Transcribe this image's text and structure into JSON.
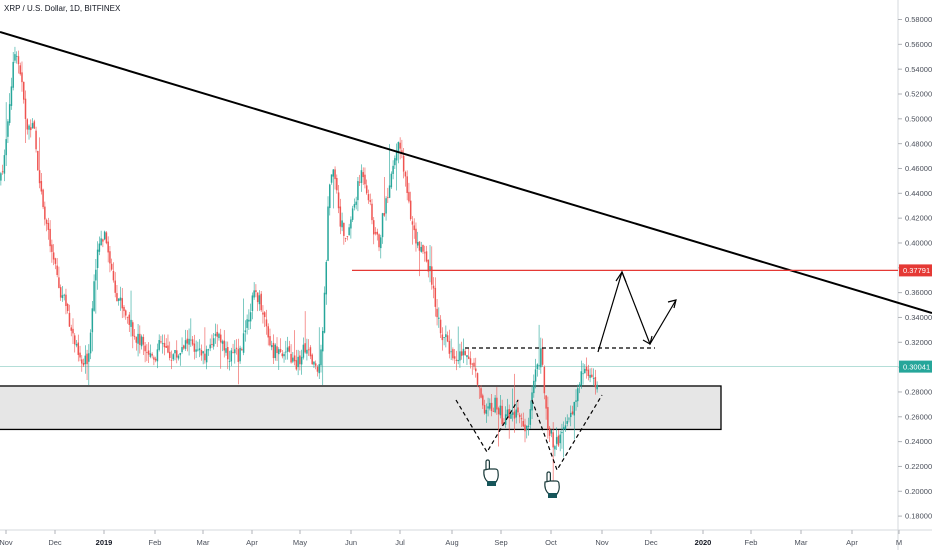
{
  "chart_data": {
    "type": "candlestick",
    "title": "XRP / U.S. Dollar, 1D, BITFINEX",
    "y_axis": {
      "ticks": [
        "0.58000",
        "0.56000",
        "0.54000",
        "0.52000",
        "0.50000",
        "0.48000",
        "0.46000",
        "0.44000",
        "0.42000",
        "0.40000",
        "0.38000",
        "0.36000",
        "0.34000",
        "0.32000",
        "0.30000",
        "0.28000",
        "0.26000",
        "0.24000",
        "0.22000",
        "0.20000",
        "0.18000"
      ],
      "range": [
        0.17,
        0.59
      ]
    },
    "x_axis": {
      "ticks": [
        {
          "label": "Nov",
          "bold": false
        },
        {
          "label": "Dec",
          "bold": false
        },
        {
          "label": "2019",
          "bold": true
        },
        {
          "label": "Feb",
          "bold": false
        },
        {
          "label": "Mar",
          "bold": false
        },
        {
          "label": "Apr",
          "bold": false
        },
        {
          "label": "May",
          "bold": false
        },
        {
          "label": "Jun",
          "bold": false
        },
        {
          "label": "Jul",
          "bold": false
        },
        {
          "label": "Aug",
          "bold": false
        },
        {
          "label": "Sep",
          "bold": false
        },
        {
          "label": "Oct",
          "bold": false
        },
        {
          "label": "Nov",
          "bold": false
        },
        {
          "label": "Dec",
          "bold": false
        },
        {
          "label": "2020",
          "bold": true
        },
        {
          "label": "Feb",
          "bold": false
        },
        {
          "label": "Mar",
          "bold": false
        },
        {
          "label": "Apr",
          "bold": false
        },
        {
          "label": "M",
          "bold": false
        }
      ]
    },
    "price_path": [
      0.45,
      0.47,
      0.52,
      0.56,
      0.53,
      0.49,
      0.5,
      0.46,
      0.43,
      0.4,
      0.38,
      0.36,
      0.35,
      0.33,
      0.31,
      0.3,
      0.31,
      0.37,
      0.4,
      0.41,
      0.38,
      0.36,
      0.35,
      0.34,
      0.33,
      0.32,
      0.32,
      0.31,
      0.31,
      0.32,
      0.31,
      0.31,
      0.31,
      0.32,
      0.32,
      0.31,
      0.31,
      0.31,
      0.32,
      0.33,
      0.32,
      0.31,
      0.31,
      0.31,
      0.33,
      0.35,
      0.36,
      0.35,
      0.33,
      0.31,
      0.32,
      0.31,
      0.31,
      0.3,
      0.31,
      0.32,
      0.3,
      0.3,
      0.33,
      0.44,
      0.46,
      0.42,
      0.4,
      0.42,
      0.44,
      0.46,
      0.44,
      0.41,
      0.4,
      0.43,
      0.45,
      0.48,
      0.47,
      0.44,
      0.41,
      0.4,
      0.39,
      0.38,
      0.35,
      0.33,
      0.32,
      0.31,
      0.31,
      0.31,
      0.31,
      0.3,
      0.28,
      0.26,
      0.27,
      0.27,
      0.26,
      0.26,
      0.26,
      0.26,
      0.25,
      0.26,
      0.3,
      0.31,
      0.26,
      0.24,
      0.24,
      0.25,
      0.26,
      0.27,
      0.29,
      0.3,
      0.29,
      0.28
    ],
    "support_zone": {
      "low": 0.2498,
      "high": 0.2848
    },
    "resistance_level": 0.37791,
    "current_price": 0.30041,
    "neckline_level": 0.3154,
    "badges": [
      {
        "label": "0.37791",
        "price": 0.37791,
        "color": "#e53935"
      },
      {
        "label": "0.30041",
        "price": 0.30041,
        "color": "#26a69a"
      }
    ],
    "colors": {
      "up": "#26a69a",
      "down": "#ef5350",
      "trendline": "#000000",
      "resistance": "#e53935",
      "zone_fill": "#e6e6e6"
    }
  }
}
